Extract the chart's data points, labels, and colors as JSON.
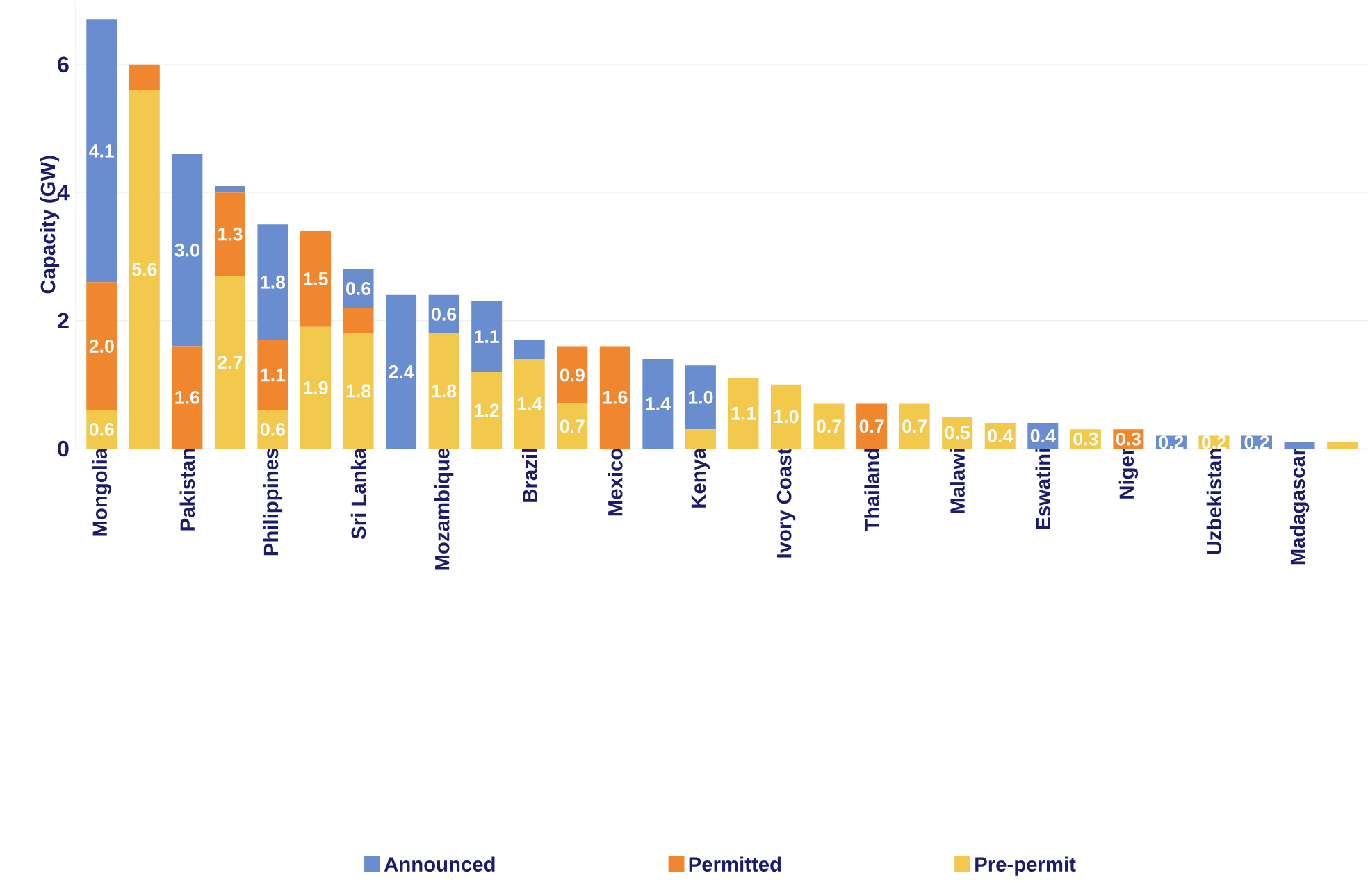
{
  "chart_data": {
    "type": "bar",
    "stacked": true,
    "ylabel": "Capacity (GW)",
    "categories": [
      "Mongolia",
      null,
      "Pakistan",
      null,
      "Philippines",
      null,
      "Sri Lanka",
      null,
      "Mozambique",
      null,
      "Brazil",
      null,
      "Mexico",
      null,
      "Kenya",
      null,
      "Ivory Coast",
      null,
      "Thailand",
      null,
      "Malawi",
      null,
      "Eswatini",
      null,
      "Niger",
      null,
      "Uzbekistan",
      null,
      "Madagascar",
      null
    ],
    "series": [
      {
        "name": "Pre-permit",
        "color": "#f2c94c",
        "values": [
          0.6,
          5.6,
          0,
          2.7,
          0.6,
          1.9,
          1.8,
          0,
          1.8,
          1.2,
          1.4,
          0.7,
          0,
          0,
          0.3,
          1.1,
          1.0,
          0.7,
          0,
          0.7,
          0.5,
          0.4,
          0,
          0.3,
          0,
          0,
          0.2,
          0,
          0,
          0.1
        ],
        "value_labels": [
          "0.6",
          "5.6",
          null,
          "2.7",
          "0.6",
          "1.9",
          "1.8",
          null,
          "1.8",
          "1.2",
          "1.4",
          "0.7",
          null,
          null,
          null,
          "1.1",
          "1.0",
          "0.7",
          null,
          "0.7",
          "0.5",
          "0.4",
          null,
          "0.3",
          null,
          null,
          "0.2",
          null,
          null,
          null
        ]
      },
      {
        "name": "Permitted",
        "color": "#f0862e",
        "values": [
          2.0,
          0.4,
          1.6,
          1.3,
          1.1,
          1.5,
          0.4,
          0,
          0,
          0,
          0,
          0.9,
          1.6,
          0,
          0,
          0,
          0,
          0,
          0.7,
          0,
          0,
          0,
          0,
          0,
          0.3,
          0,
          0,
          0,
          0,
          0
        ],
        "value_labels": [
          "2.0",
          null,
          "1.6",
          "1.3",
          "1.1",
          "1.5",
          null,
          null,
          null,
          null,
          null,
          "0.9",
          "1.6",
          null,
          null,
          null,
          null,
          null,
          "0.7",
          null,
          null,
          null,
          null,
          null,
          "0.3",
          null,
          null,
          null,
          null,
          null
        ]
      },
      {
        "name": "Announced",
        "color": "#6a8dd0",
        "values": [
          4.1,
          0,
          3.0,
          0.1,
          1.8,
          0,
          0.6,
          2.4,
          0.6,
          1.1,
          0.3,
          0,
          0,
          1.4,
          1.0,
          0,
          0,
          0,
          0,
          0,
          0,
          0,
          0.4,
          0,
          0,
          0.2,
          0,
          0.2,
          0.1,
          0
        ],
        "value_labels": [
          "4.1",
          null,
          "3.0",
          null,
          "1.8",
          null,
          "0.6",
          "2.4",
          "0.6",
          "1.1",
          null,
          null,
          null,
          "1.4",
          "1.0",
          null,
          null,
          null,
          null,
          null,
          null,
          null,
          "0.4",
          null,
          null,
          "0.2",
          null,
          "0.2",
          null,
          null
        ]
      }
    ],
    "ylim": [
      0,
      7
    ],
    "yticks": [
      0,
      2,
      4,
      6
    ],
    "grid": "y",
    "legend": "bottom"
  }
}
